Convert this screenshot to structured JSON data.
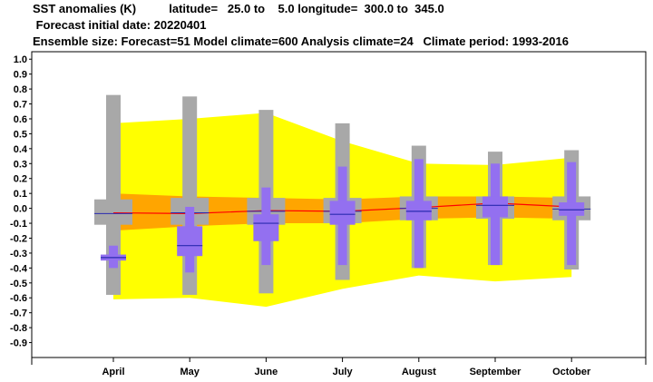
{
  "header": {
    "line1": "SST anomalies (K)          latitude=   25.0 to    5.0 longitude=  300.0 to  345.0",
    "line2": " Forecast initial date: 20220401",
    "line3": "Ensemble size: Forecast=51 Model climate=600 Analysis climate=24   Climate period: 1993-2016"
  },
  "chart_data": {
    "type": "box",
    "title": "SST anomalies (K)",
    "categories": [
      "April",
      "May",
      "June",
      "July",
      "August",
      "September",
      "October"
    ],
    "ylim": [
      -1.0,
      1.05
    ],
    "yticks": [
      {
        "v": 1.0,
        "label": "1.0"
      },
      {
        "v": 0.9,
        "label": "0.9"
      },
      {
        "v": 0.8,
        "label": "0.8"
      },
      {
        "v": 0.7,
        "label": "0.7"
      },
      {
        "v": 0.6,
        "label": "0.6"
      },
      {
        "v": 0.5,
        "label": "0.5"
      },
      {
        "v": 0.4,
        "label": "0.4"
      },
      {
        "v": 0.3,
        "label": "0.3"
      },
      {
        "v": 0.2,
        "label": "0.2"
      },
      {
        "v": 0.1,
        "label": "0.1"
      },
      {
        "v": 0.0,
        "label": "0.0"
      },
      {
        "v": -0.1,
        "label": "-0.1"
      },
      {
        "v": -0.2,
        "label": "-0.2"
      },
      {
        "v": -0.3,
        "label": "-0.3"
      },
      {
        "v": -0.4,
        "label": "-0.4"
      },
      {
        "v": -0.5,
        "label": "-0.5"
      },
      {
        "v": -0.6,
        "label": "-0.6"
      },
      {
        "v": -0.7,
        "label": "-0.7"
      },
      {
        "v": -0.8,
        "label": "-0.8"
      },
      {
        "v": -0.9,
        "label": "-0.9"
      }
    ],
    "model_climate": {
      "outer": [
        {
          "min": -0.58,
          "q1": -0.11,
          "median": -0.035,
          "q3": 0.06,
          "max": 0.76
        },
        {
          "min": -0.58,
          "q1": -0.11,
          "median": -0.03,
          "q3": 0.07,
          "max": 0.75
        },
        {
          "min": -0.57,
          "q1": -0.11,
          "median": -0.02,
          "q3": 0.07,
          "max": 0.66
        },
        {
          "min": -0.48,
          "q1": -0.1,
          "median": -0.02,
          "q3": 0.07,
          "max": 0.57
        },
        {
          "min": -0.4,
          "q1": -0.08,
          "median": 0.0,
          "q3": 0.08,
          "max": 0.42
        },
        {
          "min": -0.38,
          "q1": -0.07,
          "median": 0.02,
          "q3": 0.08,
          "max": 0.38
        },
        {
          "min": -0.41,
          "q1": -0.08,
          "median": -0.005,
          "q3": 0.08,
          "max": 0.39
        }
      ]
    },
    "forecast": {
      "boxes": [
        {
          "min": -0.4,
          "q1": -0.35,
          "median": -0.33,
          "q3": -0.31,
          "max": -0.25
        },
        {
          "min": -0.43,
          "q1": -0.32,
          "median": -0.25,
          "q3": -0.12,
          "max": 0.01
        },
        {
          "min": -0.38,
          "q1": -0.22,
          "median": -0.1,
          "q3": -0.04,
          "max": 0.14
        },
        {
          "min": -0.38,
          "q1": -0.11,
          "median": -0.04,
          "q3": 0.05,
          "max": 0.28
        },
        {
          "min": -0.4,
          "q1": -0.08,
          "median": -0.02,
          "q3": 0.05,
          "max": 0.33
        },
        {
          "min": -0.38,
          "q1": -0.06,
          "median": 0.02,
          "q3": 0.08,
          "max": 0.3
        },
        {
          "min": -0.38,
          "q1": -0.05,
          "median": -0.01,
          "q3": 0.04,
          "max": 0.31
        }
      ]
    },
    "analysis_climate": {
      "yellow_band": {
        "low": [
          -0.61,
          -0.6,
          -0.66,
          -0.54,
          -0.45,
          -0.49,
          -0.46
        ],
        "high": [
          0.57,
          0.6,
          0.64,
          0.45,
          0.3,
          0.29,
          0.34
        ]
      },
      "orange_band": {
        "low": [
          -0.15,
          -0.12,
          -0.1,
          -0.1,
          -0.07,
          -0.06,
          -0.07
        ],
        "high": [
          0.1,
          0.08,
          0.07,
          0.06,
          0.08,
          0.08,
          0.07
        ]
      },
      "median_line": [
        -0.03,
        -0.035,
        -0.015,
        -0.02,
        0.005,
        0.035,
        0.01
      ]
    },
    "colors": {
      "yellow": "#ffff00",
      "orange": "#ffa500",
      "gray": "#a8a8a8",
      "purple": "#9370f0",
      "median_line": "#ff0000",
      "box_median": "#2a2ab0"
    },
    "grid": false
  }
}
